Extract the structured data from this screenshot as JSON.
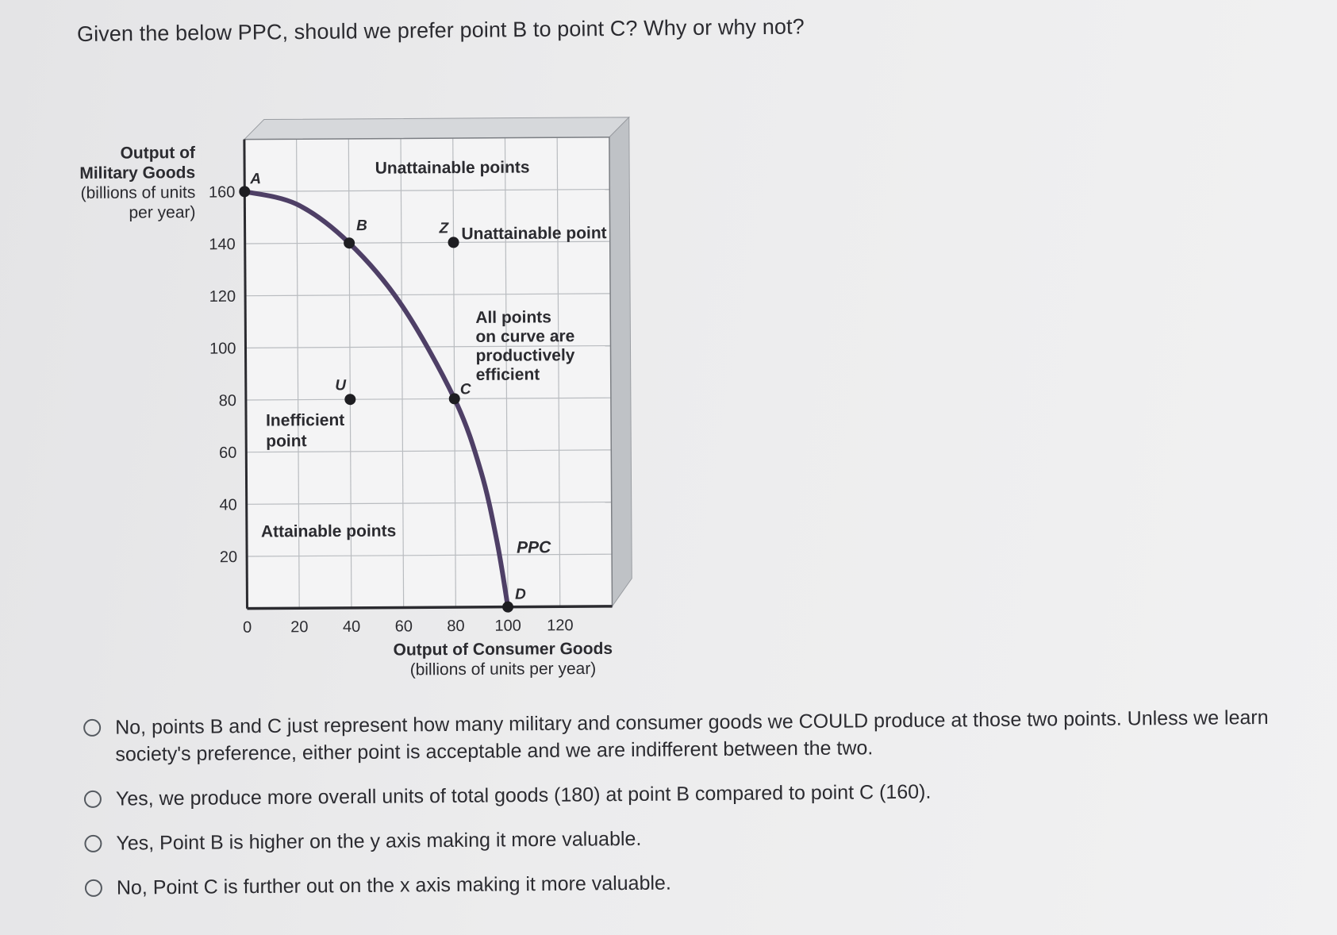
{
  "question": "Given the below PPC, should we prefer point B to point C? Why or why not?",
  "chart_data": {
    "type": "line",
    "ylabel_lines": [
      "Output of",
      "Military Goods",
      "(billions of units",
      "per year)"
    ],
    "xlabel_lines": [
      "Output of Consumer Goods",
      "(billions of units per year)"
    ],
    "x_ticks": [
      "0",
      "20",
      "40",
      "60",
      "80",
      "100",
      "120"
    ],
    "y_ticks": [
      "20",
      "40",
      "60",
      "80",
      "100",
      "120",
      "140",
      "160"
    ],
    "xlim": [
      0,
      140
    ],
    "ylim": [
      0,
      180
    ],
    "grid": true,
    "series": [
      {
        "name": "PPC",
        "points": [
          [
            0,
            160
          ],
          [
            20,
            155
          ],
          [
            40,
            140
          ],
          [
            60,
            116
          ],
          [
            80,
            80
          ],
          [
            90,
            52
          ],
          [
            96,
            25
          ],
          [
            100,
            0
          ]
        ]
      }
    ],
    "points": [
      {
        "label": "A",
        "x": 0,
        "y": 160,
        "marker": true
      },
      {
        "label": "B",
        "x": 40,
        "y": 140,
        "marker": true
      },
      {
        "label": "Z",
        "x": 80,
        "y": 140,
        "marker": true
      },
      {
        "label": "U",
        "x": 40,
        "y": 80,
        "marker": true
      },
      {
        "label": "C",
        "x": 80,
        "y": 80,
        "marker": true
      },
      {
        "label": "D",
        "x": 100,
        "y": 0,
        "marker": true
      }
    ],
    "annotations": {
      "unattainable_points": "Unattainable points",
      "unattainable_point": "Unattainable point",
      "efficient_lines": [
        "All points",
        "on curve are",
        "productively",
        "efficient"
      ],
      "inefficient_lines": [
        "Inefficient",
        "point"
      ],
      "attainable_points": "Attainable points",
      "curve_label": "PPC"
    }
  },
  "options": [
    {
      "id": "opt1",
      "text": "No, points B and C just represent how many military and consumer goods we COULD produce at those two points. Unless we learn society's preference, either point is acceptable and we are indifferent between the two."
    },
    {
      "id": "opt2",
      "text": "Yes, we produce more overall units of total goods (180) at point B compared to point C (160)."
    },
    {
      "id": "opt3",
      "text": "Yes, Point B is higher on the y axis making it more valuable."
    },
    {
      "id": "opt4",
      "text": "No, Point C is further out on the x axis making it more valuable."
    }
  ],
  "colors": {
    "curve": "#4e3f66",
    "marker": "#1e1e22",
    "frame": "#2b2b30",
    "grid": "#b9bcc0",
    "box_side": "#bfc2c6",
    "box_top": "#d6d8db"
  }
}
